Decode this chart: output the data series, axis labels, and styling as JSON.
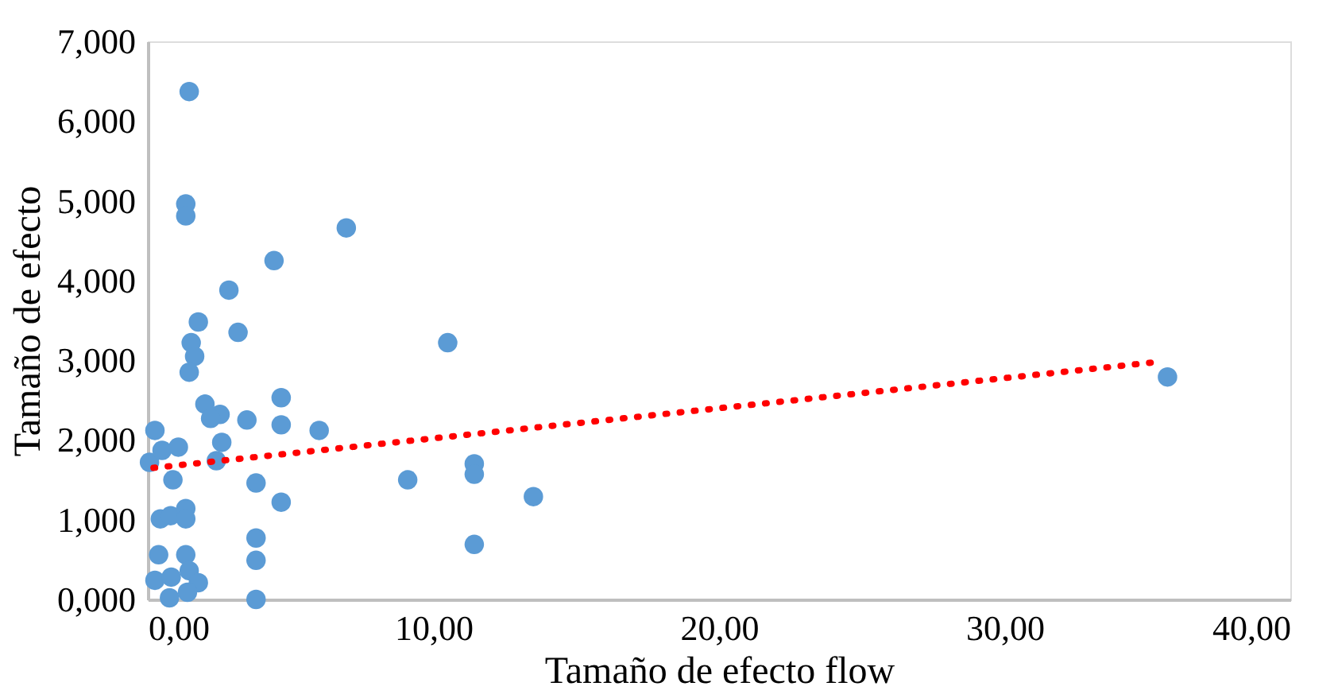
{
  "chart_data": {
    "type": "scatter",
    "xlabel": "Tamaño de efecto flow",
    "ylabel": "Tamaño de efecto",
    "xlim": [
      0,
      40
    ],
    "ylim": [
      0,
      7
    ],
    "xticks": [
      {
        "value": 0,
        "label": "0,00"
      },
      {
        "value": 10,
        "label": "10,00"
      },
      {
        "value": 20,
        "label": "20,00"
      },
      {
        "value": 30,
        "label": "30,00"
      },
      {
        "value": 40,
        "label": "40,00"
      }
    ],
    "yticks": [
      {
        "value": 0,
        "label": "0,000"
      },
      {
        "value": 1,
        "label": "1,000"
      },
      {
        "value": 2,
        "label": "2,000"
      },
      {
        "value": 3,
        "label": "3,000"
      },
      {
        "value": 4,
        "label": "4,000"
      },
      {
        "value": 5,
        "label": "5,000"
      },
      {
        "value": 6,
        "label": "6,000"
      },
      {
        "value": 7,
        "label": "7,000"
      }
    ],
    "grid": false,
    "series": [
      {
        "color": "#5b9bd5",
        "marker": "circle",
        "x": [
          1.45,
          1.33,
          1.33,
          6.95,
          4.42,
          2.84,
          1.77,
          3.16,
          1.52,
          1.64,
          1.45,
          10.5,
          2.0,
          2.53,
          4.67,
          2.2,
          3.47,
          4.67,
          6.0,
          0.25,
          1.07,
          2.59,
          0.06,
          0.5,
          2.4,
          0.88,
          3.79,
          4.67,
          9.1,
          11.43,
          11.43,
          13.5,
          11.43,
          35.7,
          0.44,
          0.8,
          1.33,
          1.33,
          3.79,
          3.79,
          3.79,
          0.38,
          1.33,
          0.25,
          0.82,
          1.45,
          1.77,
          0.76,
          1.39
        ],
        "values": [
          6.37,
          4.96,
          4.81,
          4.66,
          4.25,
          3.88,
          3.48,
          3.35,
          3.22,
          3.05,
          2.85,
          3.22,
          2.45,
          2.32,
          2.53,
          2.27,
          2.25,
          2.19,
          2.12,
          2.12,
          1.91,
          1.97,
          1.72,
          1.87,
          1.74,
          1.5,
          1.46,
          1.22,
          1.5,
          1.7,
          1.57,
          1.29,
          0.69,
          2.79,
          1.01,
          1.05,
          1.14,
          1.01,
          0.77,
          0.49,
          0.0,
          0.56,
          0.56,
          0.24,
          0.28,
          0.36,
          0.21,
          0.02,
          0.09
        ]
      },
      {
        "type": "line",
        "color": "#ff0000",
        "line_style": "dotted",
        "marker": "none",
        "x": [
          0.2,
          35.4
        ],
        "values": [
          1.65,
          2.98
        ]
      }
    ]
  }
}
